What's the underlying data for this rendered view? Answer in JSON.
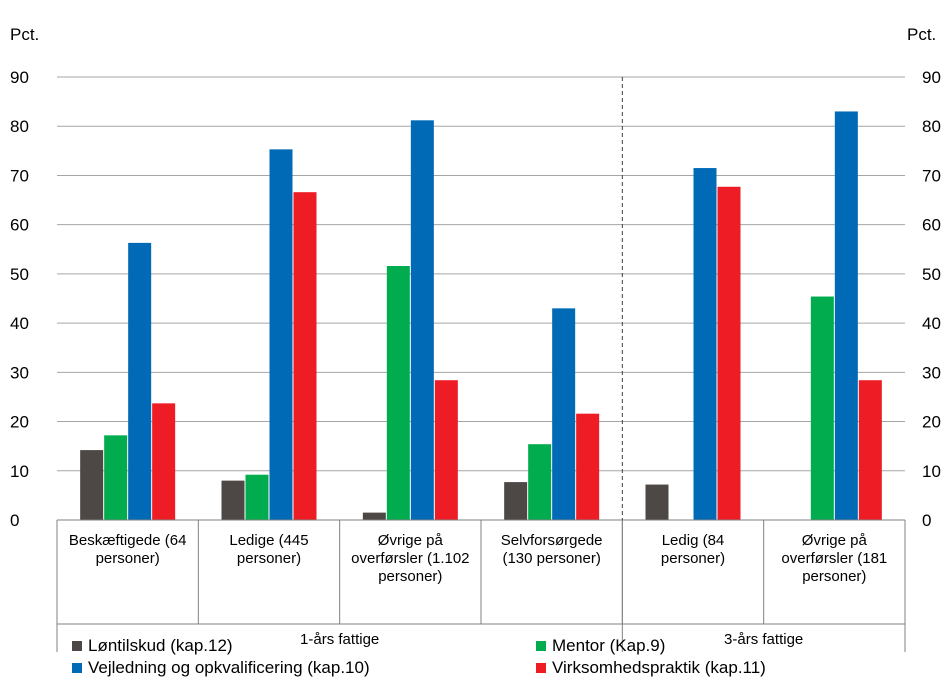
{
  "chart_data": {
    "type": "bar",
    "y_unit_left": "Pct.",
    "y_unit_right": "Pct.",
    "ylim": [
      0,
      90
    ],
    "yticks": [
      "0",
      "10",
      "20",
      "30",
      "40",
      "50",
      "60",
      "70",
      "80",
      "90"
    ],
    "grid": true,
    "legend_position": "bottom",
    "categories": [
      [
        "Beskæftigede (64",
        "personer)"
      ],
      [
        "Ledige (445",
        "personer)"
      ],
      [
        "Øvrige på",
        "overførsler (1.102",
        "personer)"
      ],
      [
        "Selvforsørgede",
        "(130 personer)"
      ],
      [
        "Ledig (84",
        "personer)"
      ],
      [
        "Øvrige på",
        "overførsler (181",
        "personer)"
      ]
    ],
    "groups": [
      {
        "label": "1-års fattige",
        "start": 0,
        "end": 3
      },
      {
        "label": "3-års fattige",
        "start": 4,
        "end": 5
      }
    ],
    "series": [
      {
        "name": "Løntilskud (kap.12)",
        "color": "#4d4846",
        "values": [
          14.2,
          8.0,
          1.5,
          7.7,
          7.2,
          null
        ]
      },
      {
        "name": "Mentor (Kap.9)",
        "color": "#00ac4e",
        "values": [
          17.2,
          9.2,
          51.6,
          15.4,
          null,
          45.4
        ]
      },
      {
        "name": "Vejledning og opkvalificering (kap.10)",
        "color": "#006ab7",
        "values": [
          56.3,
          75.3,
          81.2,
          43.0,
          71.5,
          83.0
        ]
      },
      {
        "name": "Virksomhedspraktik (kap.11)",
        "color": "#ee1c25",
        "values": [
          23.7,
          66.6,
          28.4,
          21.6,
          67.7,
          28.4
        ]
      }
    ]
  }
}
